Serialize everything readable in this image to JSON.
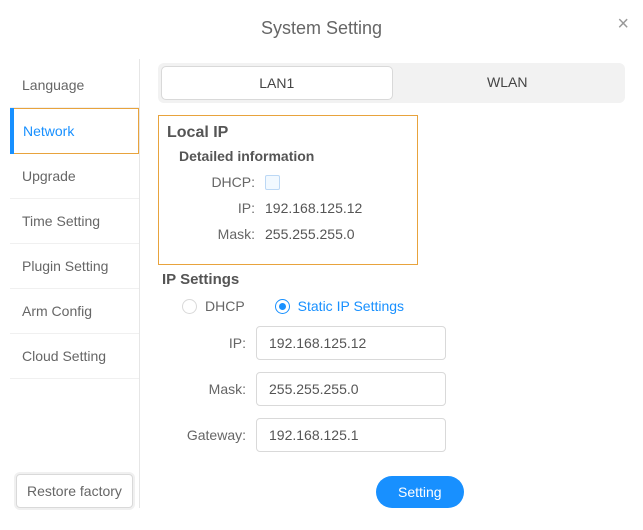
{
  "dialog": {
    "title": "System Setting",
    "close_glyph": "×"
  },
  "sidebar": {
    "items": [
      {
        "label": "Language",
        "active": false
      },
      {
        "label": "Network",
        "active": true
      },
      {
        "label": "Upgrade",
        "active": false
      },
      {
        "label": "Time Setting",
        "active": false
      },
      {
        "label": "Plugin Setting",
        "active": false
      },
      {
        "label": "Arm Config",
        "active": false
      },
      {
        "label": "Cloud Setting",
        "active": false
      }
    ],
    "restore_label": "Restore factory"
  },
  "tabs": {
    "items": [
      "LAN1",
      "WLAN"
    ],
    "active_index": 0
  },
  "local_ip": {
    "section_title": "Local IP",
    "subtitle": "Detailed information",
    "dhcp_label": "DHCP:",
    "dhcp_checked": false,
    "ip_label": "IP:",
    "ip_value": "192.168.125.12",
    "mask_label": "Mask:",
    "mask_value": "255.255.255.0"
  },
  "ip_settings": {
    "section_title": "IP Settings",
    "mode": "static",
    "radio_dhcp_label": "DHCP",
    "radio_static_label": "Static IP Settings",
    "ip_label": "IP:",
    "ip_value": "192.168.125.12",
    "mask_label": "Mask:",
    "mask_value": "255.255.255.0",
    "gateway_label": "Gateway:",
    "gateway_value": "192.168.125.1",
    "submit_label": "Setting"
  },
  "colors": {
    "accent": "#1890ff",
    "highlight_border": "#e8a33d",
    "border": "#d9d9d9"
  }
}
